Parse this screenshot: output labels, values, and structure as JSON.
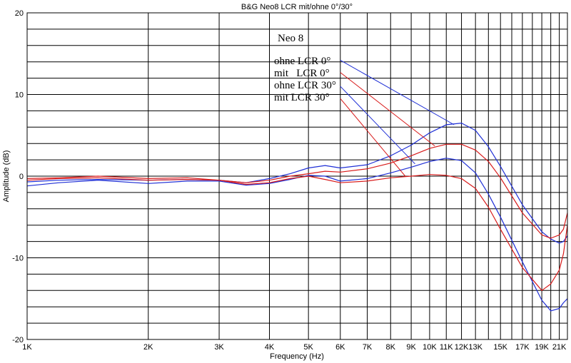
{
  "chart_data": {
    "type": "line",
    "title": "B&G Neo8 LCR mit/ohne 0°/30°",
    "xlabel": "Frequency (Hz)",
    "ylabel": "Amplitude (dB)",
    "xscale": "log",
    "xlim": [
      1000,
      22000
    ],
    "ylim": [
      -20,
      20
    ],
    "grid": true,
    "x_ticks": [
      {
        "value": 1000,
        "label": "1K"
      },
      {
        "value": 2000,
        "label": "2K"
      },
      {
        "value": 3000,
        "label": "3K"
      },
      {
        "value": 4000,
        "label": "4K"
      },
      {
        "value": 5000,
        "label": "5K"
      },
      {
        "value": 6000,
        "label": "6K"
      },
      {
        "value": 7000,
        "label": "7K"
      },
      {
        "value": 8000,
        "label": "8K"
      },
      {
        "value": 9000,
        "label": "9K"
      },
      {
        "value": 10000,
        "label": "10K"
      },
      {
        "value": 11000,
        "label": "11K"
      },
      {
        "value": 12000,
        "label": "12K"
      },
      {
        "value": 13000,
        "label": "13K"
      },
      {
        "value": 15000,
        "label": "15K"
      },
      {
        "value": 17000,
        "label": "17K"
      },
      {
        "value": 19000,
        "label": "19K"
      },
      {
        "value": 21000,
        "label": "21K"
      }
    ],
    "y_ticks": [
      {
        "value": 20,
        "label": "20"
      },
      {
        "value": 10,
        "label": "10"
      },
      {
        "value": 0,
        "label": "0"
      },
      {
        "value": -10,
        "label": "-10"
      },
      {
        "value": -20,
        "label": "-20"
      }
    ],
    "annotations": {
      "heading": "Neo 8",
      "labels": [
        "ohne LCR 0°",
        "mit   LCR 0°",
        "ohne LCR 30°",
        "mit LCR 30°"
      ]
    },
    "series": [
      {
        "name": "ohne LCR 0°",
        "color": "#1f2fd6",
        "x": [
          1000,
          1200,
          1500,
          2000,
          2500,
          3000,
          3500,
          4000,
          4500,
          5000,
          5500,
          6000,
          7000,
          8000,
          9000,
          10000,
          11000,
          12000,
          13000,
          14000,
          15000,
          17000,
          19000,
          20000,
          21000,
          21500,
          22000
        ],
        "y": [
          -0.7,
          -0.5,
          -0.4,
          -0.5,
          -0.4,
          -0.5,
          -0.8,
          -0.3,
          0.3,
          1.0,
          1.3,
          1.0,
          1.4,
          2.5,
          3.8,
          5.3,
          6.3,
          6.5,
          5.6,
          3.6,
          1.2,
          -3.5,
          -6.8,
          -7.7,
          -8.2,
          -8.0,
          -7.3
        ]
      },
      {
        "name": "mit   LCR 0°",
        "color": "#d81b1b",
        "x": [
          1000,
          1200,
          1500,
          2000,
          2500,
          3000,
          3500,
          4000,
          4500,
          5000,
          5500,
          6000,
          7000,
          8000,
          9000,
          10000,
          11000,
          12000,
          13000,
          14000,
          15000,
          17000,
          19000,
          20000,
          21000,
          21500,
          22000
        ],
        "y": [
          -0.3,
          -0.2,
          0.0,
          -0.3,
          -0.2,
          -0.5,
          -0.8,
          -0.5,
          0.0,
          0.3,
          0.6,
          0.5,
          0.9,
          1.6,
          2.5,
          3.4,
          3.9,
          3.9,
          3.2,
          1.8,
          -0.2,
          -4.5,
          -7.2,
          -7.6,
          -7.2,
          -6.5,
          -4.5
        ]
      },
      {
        "name": "ohne LCR 30°",
        "color": "#1f2fd6",
        "x": [
          1000,
          1200,
          1500,
          2000,
          2500,
          3000,
          3500,
          4000,
          4500,
          5000,
          5500,
          6000,
          7000,
          8000,
          9000,
          10000,
          11000,
          12000,
          13000,
          14000,
          15000,
          17000,
          19000,
          20000,
          21000,
          21500,
          22000
        ],
        "y": [
          -1.2,
          -0.8,
          -0.5,
          -0.9,
          -0.6,
          -0.6,
          -1.1,
          -0.9,
          -0.4,
          0.1,
          0.0,
          -0.6,
          -0.3,
          0.4,
          1.1,
          1.8,
          2.2,
          1.9,
          0.4,
          -2.2,
          -5.0,
          -10.5,
          -15.2,
          -16.5,
          -16.2,
          -15.5,
          -15.0
        ]
      },
      {
        "name": "mit LCR 30°",
        "color": "#d81b1b",
        "x": [
          1000,
          1200,
          1500,
          2000,
          2500,
          3000,
          3500,
          4000,
          4500,
          5000,
          5500,
          6000,
          7000,
          8000,
          9000,
          10000,
          11000,
          12000,
          13000,
          14000,
          15000,
          17000,
          19000,
          20000,
          21000,
          21500,
          22000
        ],
        "y": [
          -0.5,
          -0.3,
          -0.2,
          -0.5,
          -0.4,
          -0.5,
          -1.0,
          -0.8,
          -0.3,
          0.0,
          -0.4,
          -0.8,
          -0.6,
          -0.2,
          0.0,
          0.2,
          0.1,
          -0.3,
          -1.5,
          -3.8,
          -6.5,
          -11.2,
          -14.0,
          -13.2,
          -11.5,
          -9.5,
          -6.0
        ]
      }
    ],
    "leader_lines": [
      {
        "color": "#1f2fd6",
        "from": {
          "freq": 6000,
          "db": 14.2
        },
        "to": {
          "freq": 11500,
          "db": 6.3
        }
      },
      {
        "color": "#d81b1b",
        "from": {
          "freq": 6000,
          "db": 12.7
        },
        "to": {
          "freq": 10300,
          "db": 3.7
        }
      },
      {
        "color": "#1f2fd6",
        "from": {
          "freq": 6000,
          "db": 11.0
        },
        "to": {
          "freq": 9200,
          "db": 1.5
        }
      },
      {
        "color": "#d81b1b",
        "from": {
          "freq": 6000,
          "db": 9.5
        },
        "to": {
          "freq": 8700,
          "db": 0.0
        }
      }
    ]
  }
}
